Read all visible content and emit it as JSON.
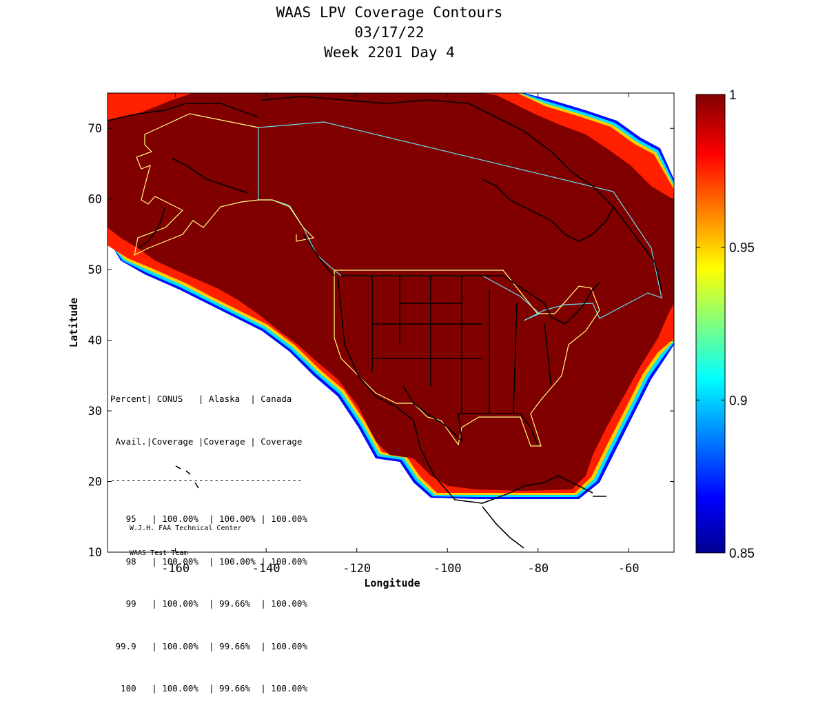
{
  "title": {
    "line1": "WAAS LPV Coverage Contours",
    "line2": "03/17/22",
    "line3": "Week 2201 Day 4"
  },
  "axes": {
    "xlabel": "Longitude",
    "ylabel": "Latitude",
    "xlim": [
      -175,
      -50
    ],
    "ylim": [
      10,
      75
    ],
    "xticks": [
      -160,
      -140,
      -120,
      -100,
      -80,
      -60
    ],
    "yticks": [
      10,
      20,
      30,
      40,
      50,
      60,
      70
    ]
  },
  "colorbar": {
    "min": 0.85,
    "max": 1,
    "tick_labels": [
      "1",
      "0.95",
      "0.9",
      "0.85"
    ],
    "colormap": "jet",
    "colors": [
      "#00008f",
      "#0000ff",
      "#00ffff",
      "#ffff00",
      "#ff0000",
      "#800000"
    ]
  },
  "stats_table": {
    "header1": "Percent| CONUS   | Alaska  | Canada",
    "header2": " Avail.|Coverage |Coverage | Coverage",
    "divider": "-------------------------------------",
    "rows": [
      "   95   | 100.00%  | 100.00% | 100.00%",
      "   98   | 100.00%  | 100.00% | 100.00%",
      "   99   | 100.00%  | 99.66%  | 100.00%",
      " 99.9   | 100.00%  | 99.66%  | 100.00%",
      "  100   | 100.00%  | 99.66%  | 100.00%"
    ]
  },
  "credit": {
    "line1": "W.J.H. FAA Technical Center",
    "line2": "WAAS Test Team"
  },
  "colors": {
    "full_coverage": "#800000",
    "border_service_area": "#ffff80",
    "border_canada": "#66ddee"
  }
}
